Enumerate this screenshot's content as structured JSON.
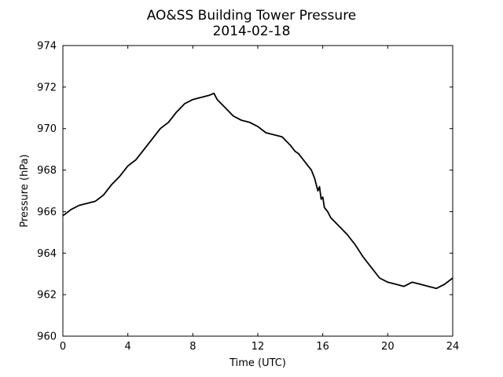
{
  "chart_data": {
    "type": "line",
    "title": "AO&SS Building Tower Pressure",
    "subtitle": "2014-02-18",
    "xlabel": "Time (UTC)",
    "ylabel": "Pressure (hPa)",
    "xlim": [
      0,
      24
    ],
    "ylim": [
      960,
      974
    ],
    "xticks": [
      "0",
      "4",
      "8",
      "12",
      "16",
      "20",
      "24"
    ],
    "yticks": [
      "960",
      "962",
      "964",
      "966",
      "968",
      "970",
      "972",
      "974"
    ],
    "grid": false,
    "legend": "none",
    "colors": {
      "line": "#000000",
      "axes": "#000000",
      "background": "#ffffff"
    },
    "series": [
      {
        "x": [
          0,
          0.5,
          1,
          1.5,
          2,
          2.5,
          3,
          3.5,
          4,
          4.5,
          5,
          5.5,
          6,
          6.5,
          7,
          7.5,
          8,
          8.5,
          9,
          9.3,
          9.5,
          10,
          10.5,
          11,
          11.5,
          12,
          12.5,
          13,
          13.5,
          14,
          14.3,
          14.5,
          15,
          15.3,
          15.5,
          15.7,
          15.8,
          15.9,
          16,
          16.1,
          16.3,
          16.5,
          17,
          17.5,
          18,
          18.5,
          19,
          19.5,
          20,
          20.5,
          21,
          21.5,
          22,
          22.5,
          23,
          23.5,
          24
        ],
        "y": [
          965.8,
          966.1,
          966.3,
          966.4,
          966.5,
          966.8,
          967.3,
          967.7,
          968.2,
          968.5,
          969.0,
          969.5,
          970.0,
          970.3,
          970.8,
          971.2,
          971.4,
          971.5,
          971.6,
          971.7,
          971.4,
          971.0,
          970.6,
          970.4,
          970.3,
          970.1,
          969.8,
          969.7,
          969.6,
          969.2,
          968.9,
          968.8,
          968.3,
          968.0,
          967.6,
          967.0,
          967.2,
          966.6,
          966.7,
          966.2,
          966.0,
          965.7,
          965.3,
          964.9,
          964.4,
          963.8,
          963.3,
          962.8,
          962.6,
          962.5,
          962.4,
          962.6,
          962.5,
          962.4,
          962.3,
          962.5,
          962.8
        ]
      }
    ]
  }
}
